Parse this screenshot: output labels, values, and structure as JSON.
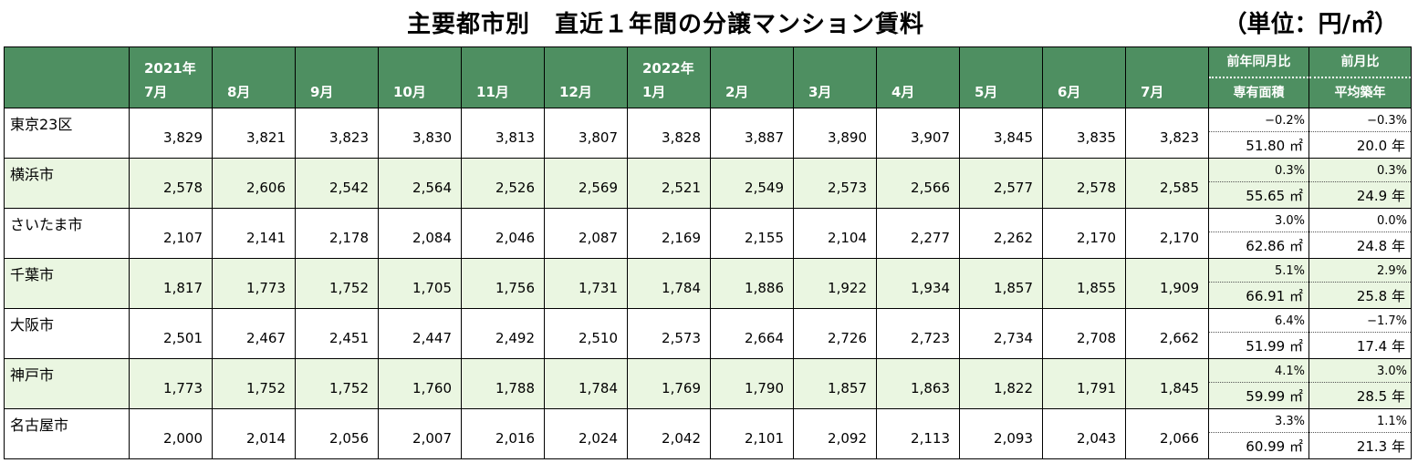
{
  "title": "主要都市別　直近１年間の分譲マンション賃料",
  "unit": "（単位：円/㎡）",
  "columns": [
    {
      "year": "2021年",
      "month": "7月"
    },
    {
      "year": "",
      "month": "8月"
    },
    {
      "year": "",
      "month": "9月"
    },
    {
      "year": "",
      "month": "10月"
    },
    {
      "year": "",
      "month": "11月"
    },
    {
      "year": "",
      "month": "12月"
    },
    {
      "year": "2022年",
      "month": "1月"
    },
    {
      "year": "",
      "month": "2月"
    },
    {
      "year": "",
      "month": "3月"
    },
    {
      "year": "",
      "month": "4月"
    },
    {
      "year": "",
      "month": "5月"
    },
    {
      "year": "",
      "month": "6月"
    },
    {
      "year": "",
      "month": "7月"
    }
  ],
  "compare_headers": {
    "yoy": "前年同月比",
    "area": "専有面積",
    "mom": "前月比",
    "age": "平均築年"
  },
  "rows": [
    {
      "city": "東京23区",
      "values": [
        "3,829",
        "3,821",
        "3,823",
        "3,830",
        "3,813",
        "3,807",
        "3,828",
        "3,887",
        "3,890",
        "3,907",
        "3,845",
        "3,835",
        "3,823"
      ],
      "yoy": "−0.2%",
      "area": "51.80 ㎡",
      "mom": "−0.3%",
      "age": "20.0 年"
    },
    {
      "city": "横浜市",
      "values": [
        "2,578",
        "2,606",
        "2,542",
        "2,564",
        "2,526",
        "2,569",
        "2,521",
        "2,549",
        "2,573",
        "2,566",
        "2,577",
        "2,578",
        "2,585"
      ],
      "yoy": "0.3%",
      "area": "55.65 ㎡",
      "mom": "0.3%",
      "age": "24.9 年"
    },
    {
      "city": "さいたま市",
      "values": [
        "2,107",
        "2,141",
        "2,178",
        "2,084",
        "2,046",
        "2,087",
        "2,169",
        "2,155",
        "2,104",
        "2,277",
        "2,262",
        "2,170",
        "2,170"
      ],
      "yoy": "3.0%",
      "area": "62.86 ㎡",
      "mom": "0.0%",
      "age": "24.8 年"
    },
    {
      "city": "千葉市",
      "values": [
        "1,817",
        "1,773",
        "1,752",
        "1,705",
        "1,756",
        "1,731",
        "1,784",
        "1,886",
        "1,922",
        "1,934",
        "1,857",
        "1,855",
        "1,909"
      ],
      "yoy": "5.1%",
      "area": "66.91 ㎡",
      "mom": "2.9%",
      "age": "25.8 年"
    },
    {
      "city": "大阪市",
      "values": [
        "2,501",
        "2,467",
        "2,451",
        "2,447",
        "2,492",
        "2,510",
        "2,573",
        "2,664",
        "2,726",
        "2,723",
        "2,734",
        "2,708",
        "2,662"
      ],
      "yoy": "6.4%",
      "area": "51.99 ㎡",
      "mom": "−1.7%",
      "age": "17.4 年"
    },
    {
      "city": "神戸市",
      "values": [
        "1,773",
        "1,752",
        "1,752",
        "1,760",
        "1,788",
        "1,784",
        "1,769",
        "1,790",
        "1,857",
        "1,863",
        "1,822",
        "1,791",
        "1,845"
      ],
      "yoy": "4.1%",
      "area": "59.99 ㎡",
      "mom": "3.0%",
      "age": "28.5 年"
    },
    {
      "city": "名古屋市",
      "values": [
        "2,000",
        "2,014",
        "2,056",
        "2,007",
        "2,016",
        "2,024",
        "2,042",
        "2,101",
        "2,092",
        "2,113",
        "2,093",
        "2,043",
        "2,066"
      ],
      "yoy": "3.3%",
      "area": "60.99 ㎡",
      "mom": "1.1%",
      "age": "21.3 年"
    }
  ]
}
